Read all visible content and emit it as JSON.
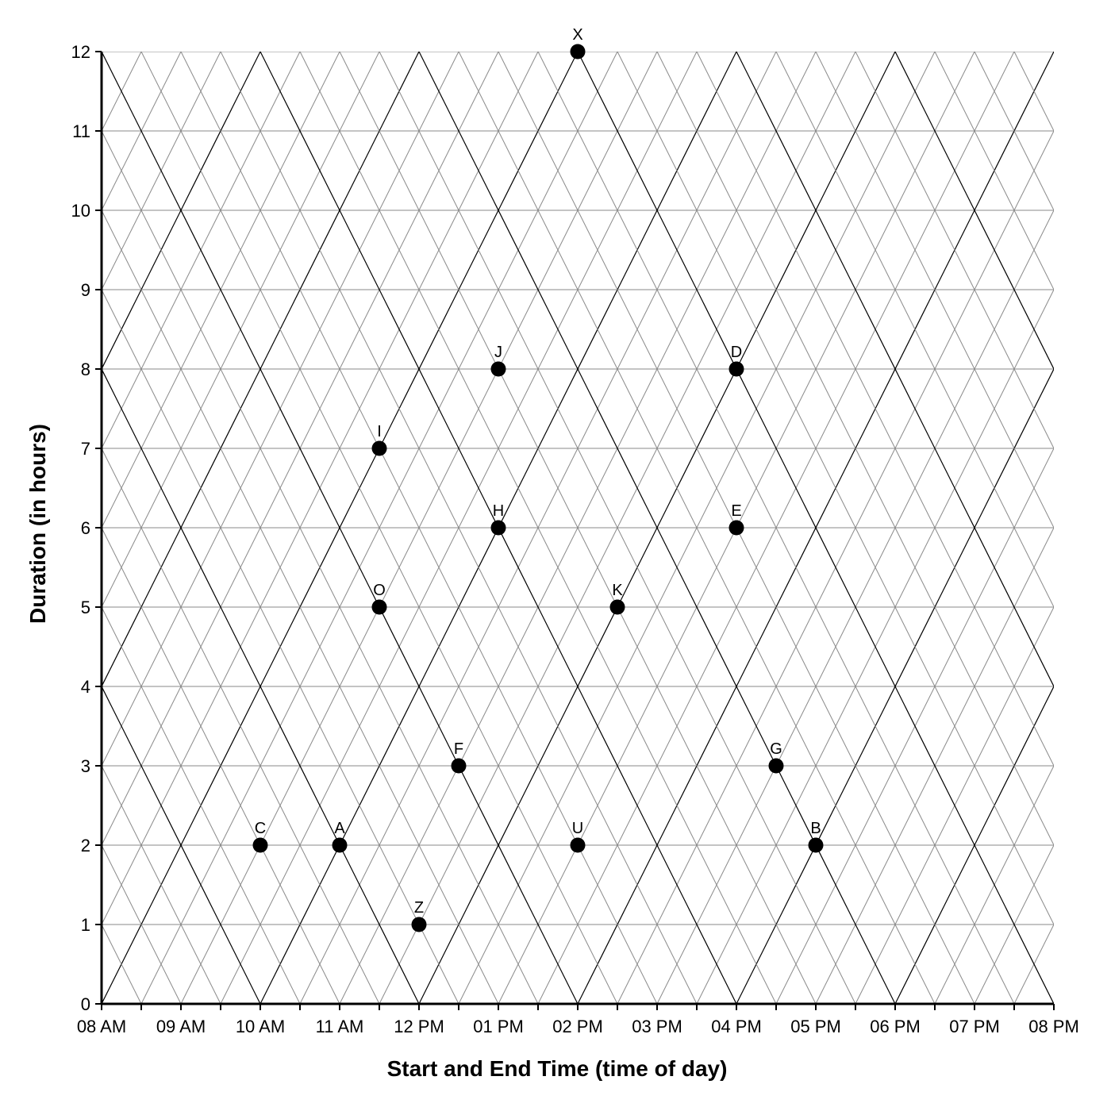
{
  "chart_data": {
    "type": "scatter",
    "xlabel": "Start and End Time (time of day)",
    "ylabel": "Duration (in hours)",
    "x_ticks": [
      "08 AM",
      "09 AM",
      "10 AM",
      "11 AM",
      "12 PM",
      "01 PM",
      "02 PM",
      "03 PM",
      "04 PM",
      "05 PM",
      "06 PM",
      "07 PM",
      "08 PM"
    ],
    "y_ticks": [
      "0",
      "1",
      "2",
      "3",
      "4",
      "5",
      "6",
      "7",
      "8",
      "9",
      "10",
      "11",
      "12"
    ],
    "xlim": [
      "08 AM",
      "08 PM"
    ],
    "ylim": [
      0,
      12
    ],
    "grid": "triangular",
    "points": [
      {
        "label": "X",
        "x": "02:00 PM",
        "y": 12
      },
      {
        "label": "J",
        "x": "01:00 PM",
        "y": 8
      },
      {
        "label": "D",
        "x": "04:00 PM",
        "y": 8
      },
      {
        "label": "I",
        "x": "11:30 AM",
        "y": 7
      },
      {
        "label": "H",
        "x": "01:00 PM",
        "y": 6
      },
      {
        "label": "E",
        "x": "04:00 PM",
        "y": 6
      },
      {
        "label": "O",
        "x": "11:30 AM",
        "y": 5
      },
      {
        "label": "K",
        "x": "02:30 PM",
        "y": 5
      },
      {
        "label": "F",
        "x": "12:30 PM",
        "y": 3
      },
      {
        "label": "G",
        "x": "04:30 PM",
        "y": 3
      },
      {
        "label": "C",
        "x": "10:00 AM",
        "y": 2
      },
      {
        "label": "A",
        "x": "11:00 AM",
        "y": 2
      },
      {
        "label": "U",
        "x": "02:00 PM",
        "y": 2
      },
      {
        "label": "B",
        "x": "05:00 PM",
        "y": 2
      },
      {
        "label": "Z",
        "x": "12:00 PM",
        "y": 1
      }
    ]
  }
}
